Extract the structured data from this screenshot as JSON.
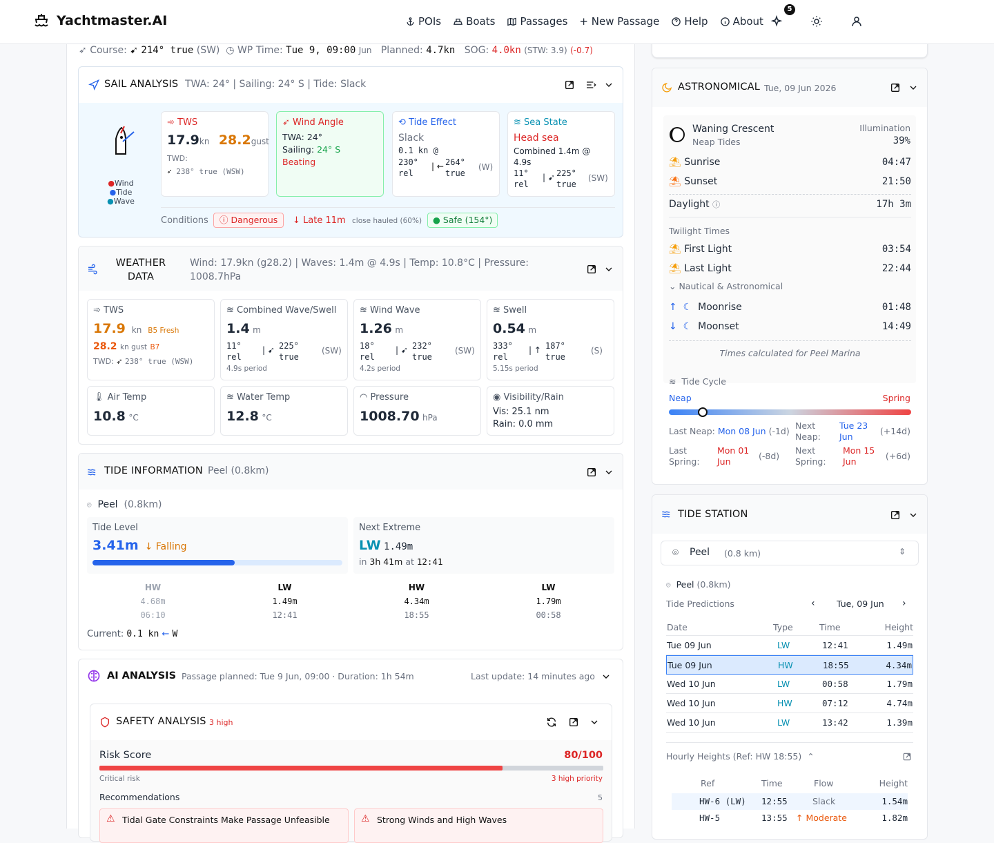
{
  "app": {
    "title": "Yachtmaster.AI",
    "notif_count": "5"
  },
  "nav": {
    "pois": "POIs",
    "boats": "Boats",
    "passages": "Passages",
    "new_passage": "+ New Passage",
    "help": "Help",
    "about": "About"
  },
  "course": {
    "label": "Course:",
    "value": "214° true",
    "dir": "(SW)",
    "wp_label": "WP Time:",
    "wp_value": "Tue 9, 09:00",
    "wp_suffix": "Jun",
    "planned_label": "Planned:",
    "planned_value": "4.7kn",
    "sog_label": "SOG:",
    "sog_value": "4.0kn",
    "stw": "(STW: 3.9)",
    "delta": "(-0.7)"
  },
  "sail": {
    "title": "SAIL ANALYSIS",
    "summary": "TWA: 24° | Sailing: 24° S | Tide: Slack",
    "legend_wind": "Wind",
    "legend_tide": "Tide",
    "legend_wave": "Wave",
    "tws_label": "TWS",
    "tws": "17.9",
    "tws_unit": "kn",
    "gust": "28.2",
    "gust_unit": "gust",
    "twd_label": "TWD:",
    "twd": "238° true (WSW)",
    "wa_label": "Wind Angle",
    "twa": "TWA: 24°",
    "sailing_label": "Sailing:",
    "sailing": "24° S",
    "beating": "Beating",
    "te_label": "Tide Effect",
    "te_state": "Slack",
    "te_speed": "0.1 kn @",
    "te_rel": "230°",
    "te_rel2": "rel",
    "te_true": "264°",
    "te_true2": "true",
    "te_dir": "(W)",
    "ss_label": "Sea State",
    "ss_state": "Head sea",
    "ss_comb": "Combined 1.4m @",
    "ss_period": "4.9s",
    "ss_rel": "11°",
    "ss_rel2": "rel",
    "ss_true": "225°",
    "ss_true2": "true",
    "ss_dir": "(SW)",
    "cond_label": "Conditions",
    "dangerous": "Dangerous",
    "late": "↓ Late 11m",
    "close": "close hauled (60%)",
    "safe": "Safe (154°)"
  },
  "weather": {
    "title1": "WEATHER",
    "title2": "DATA",
    "summary": "Wind: 17.9kn (g28.2) | Waves: 1.4m @ 4.9s | Temp: 10.8°C | Pressure:",
    "summary2": "1008.7hPa",
    "tws_label": "TWS",
    "tws": "17.9",
    "tws_unit": "kn",
    "beaufort": "B5 Fresh",
    "gust": "28.2",
    "gust_unit": "kn gust",
    "gust_b": "B7",
    "twd_label": "TWD:",
    "twd": "238° true (WSW)",
    "cw_label": "Combined Wave/Swell",
    "cw": "1.4",
    "cw_unit": "m",
    "cw_rel": "11°",
    "cw_true": "225°",
    "cw_dir": "(SW)",
    "cw_period": "4.9s period",
    "ww_label": "Wind Wave",
    "ww": "1.26",
    "ww_unit": "m",
    "ww_rel": "18°",
    "ww_true": "232°",
    "ww_dir": "(SW)",
    "ww_period": "4.2s period",
    "sw_label": "Swell",
    "sw": "0.54",
    "sw_unit": "m",
    "sw_rel": "333°",
    "sw_true": "187°",
    "sw_dir": "(S)",
    "sw_period": "5.15s period",
    "rel": "rel",
    "true": "true",
    "air_label": "Air Temp",
    "air": "10.8",
    "air_unit": "°C",
    "water_label": "Water Temp",
    "water": "12.8",
    "water_unit": "°C",
    "press_label": "Pressure",
    "press": "1008.70",
    "press_unit": "hPa",
    "vis_label": "Visibility/Rain",
    "vis": "Vis: 25.1 nm",
    "rain": "Rain: 0.0 mm"
  },
  "tide": {
    "title": "TIDE INFORMATION",
    "station": "Peel (0.8km)",
    "station_name": "Peel",
    "station_dist": "(0.8km)",
    "level_label": "Tide Level",
    "level": "3.41m",
    "trend": "↓ Falling",
    "level_pct": 0.57,
    "next_label": "Next Extreme",
    "next_type": "LW",
    "next_height": "1.49m",
    "next_in": "in",
    "next_time_rel": "3h 41m",
    "next_at": "at",
    "next_time": "12:41",
    "extremes": [
      {
        "type": "HW",
        "h": "4.68m",
        "t": "06:10",
        "past": true
      },
      {
        "type": "LW",
        "h": "1.49m",
        "t": "12:41",
        "past": false
      },
      {
        "type": "HW",
        "h": "4.34m",
        "t": "18:55",
        "past": false
      },
      {
        "type": "LW",
        "h": "1.79m",
        "t": "00:58",
        "past": false
      }
    ],
    "current_label": "Current:",
    "current": "0.1 kn",
    "current_arrow": "←",
    "current_dir": "W"
  },
  "ai": {
    "title": "AI ANALYSIS",
    "planned": "Passage planned: Tue 9 Jun, 09:00 · Duration: 1h 54m",
    "update": "Last update: 14 minutes ago",
    "safety_title": "SAFETY ANALYSIS",
    "high": "3 high",
    "risk_label": "Risk Score",
    "risk": "80/100",
    "risk_pct": 0.8,
    "critical": "Critical risk",
    "priority": "3 high priority",
    "rec_label": "Recommendations",
    "rec_count": "5",
    "rec1": "Tidal Gate Constraints Make Passage Unfeasible",
    "rec2": "Strong Winds and High Waves"
  },
  "astro": {
    "title": "ASTRONOMICAL",
    "date": "Tue, 09 Jun 2026",
    "moon": "Waning Crescent",
    "tides": "Neap Tides",
    "illum_label": "Illumination",
    "illum": "39%",
    "sunrise_label": "Sunrise",
    "sunrise": "04:47",
    "sunset_label": "Sunset",
    "sunset": "21:50",
    "daylight_label": "Daylight",
    "daylight": "17h 3m",
    "twilight": "Twilight Times",
    "first_label": "First Light",
    "first": "03:54",
    "last_label": "Last Light",
    "last": "22:44",
    "nautical": "Nautical & Astronomical",
    "moonrise_label": "Moonrise",
    "moonrise": "01:48",
    "moonset_label": "Moonset",
    "moonset": "14:49",
    "calc": "Times calculated for Peel Marina",
    "cycle": "Tide Cycle",
    "neap": "Neap",
    "spring": "Spring",
    "cycle_pct": 0.14,
    "last_neap_label": "Last Neap:",
    "last_neap": "Mon 08 Jun",
    "last_neap_rel": "(-1d)",
    "next_neap_label1": "Next",
    "next_neap_label2": "Neap:",
    "next_neap1": "Tue 23",
    "next_neap2": "Jun",
    "next_neap_rel": "(+14d)",
    "last_spring_label1": "Last",
    "last_spring_label2": "Spring:",
    "last_spring1": "Mon 01",
    "last_spring2": "Jun",
    "last_spring_rel": "(-8d)",
    "next_spring_label1": "Next",
    "next_spring_label2": "Spring:",
    "next_spring1": "Mon 15",
    "next_spring2": "Jun",
    "next_spring_rel": "(+6d)"
  },
  "station": {
    "title": "TIDE STATION",
    "select": "Peel",
    "select_dist": "(0.8 km)",
    "name": "Peel",
    "dist": "(0.8km)",
    "pred_label": "Tide Predictions",
    "date": "Tue, 09 Jun",
    "cols": [
      "Date",
      "Type",
      "Time",
      "Height"
    ],
    "rows": [
      {
        "date": "Tue 09 Jun",
        "type": "LW",
        "time": "12:41",
        "height": "1.49m"
      },
      {
        "date": "Tue 09 Jun",
        "type": "HW",
        "time": "18:55",
        "height": "4.34m",
        "sel": true
      },
      {
        "date": "Wed 10 Jun",
        "type": "LW",
        "time": "00:58",
        "height": "1.79m"
      },
      {
        "date": "Wed 10 Jun",
        "type": "HW",
        "time": "07:12",
        "height": "4.74m"
      },
      {
        "date": "Wed 10 Jun",
        "type": "LW",
        "time": "13:42",
        "height": "1.39m"
      }
    ],
    "hourly": "Hourly Heights (Ref: HW 18:55)",
    "hcols": [
      "Ref",
      "Time",
      "Flow",
      "Height"
    ],
    "hrows": [
      {
        "ref": "HW-6 (LW)",
        "time": "12:55",
        "flow": "Slack",
        "height": "1.54m"
      },
      {
        "ref": "HW-5",
        "time": "13:55",
        "flow": "↑ Moderate",
        "height": "1.82m"
      }
    ]
  }
}
